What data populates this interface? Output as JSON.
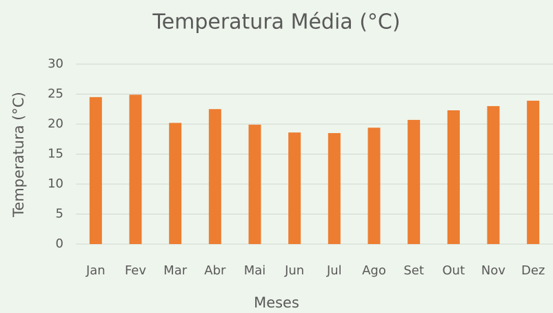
{
  "chart_data": {
    "type": "bar",
    "title": "Temperatura Média (°C)",
    "x_label": "Meses",
    "y_label": "Temperatura (°C)",
    "categories": [
      "Jan",
      "Fev",
      "Mar",
      "Abr",
      "Mai",
      "Jun",
      "Jul",
      "Ago",
      "Set",
      "Out",
      "Nov",
      "Dez"
    ],
    "values": [
      24.5,
      24.9,
      20.2,
      22.5,
      19.9,
      18.6,
      18.5,
      19.4,
      20.7,
      22.3,
      23.0,
      23.9
    ],
    "color": "#ed7d31",
    "ylim": [
      0,
      30
    ],
    "yticks": [
      0,
      5,
      10,
      15,
      20,
      25,
      30
    ],
    "grid": true
  }
}
